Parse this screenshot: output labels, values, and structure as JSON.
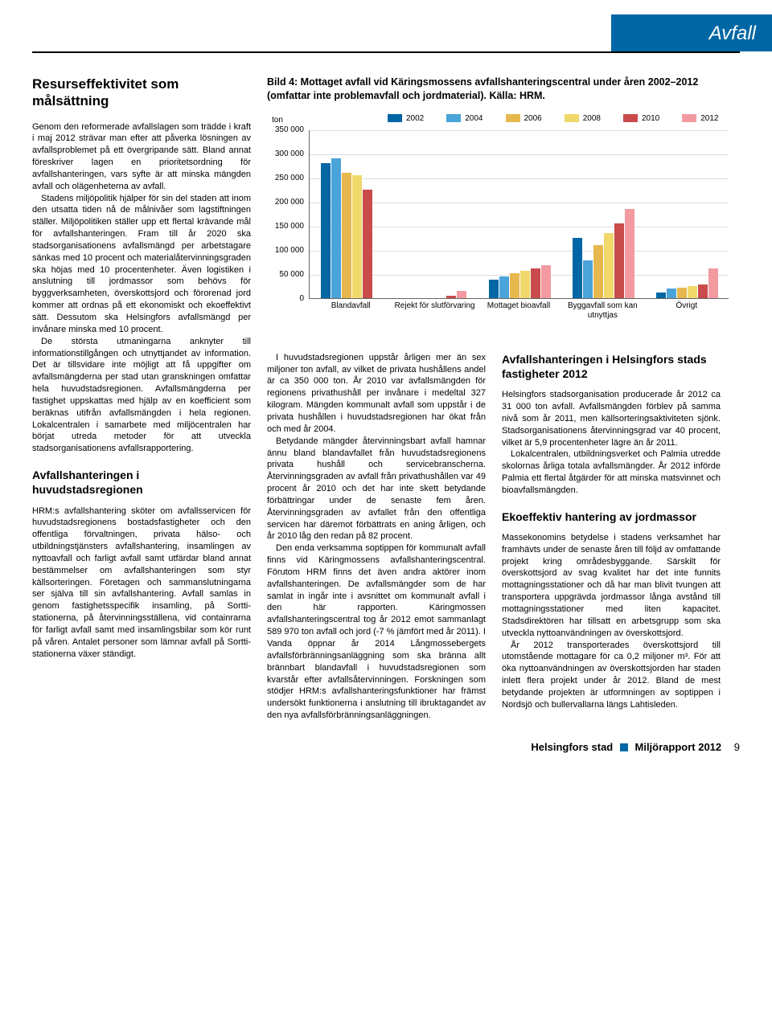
{
  "header": {
    "title": "Avfall"
  },
  "left": {
    "title": "Resurseffektivitet som målsättning",
    "p1": "Genom den reformerade avfallslagen som trädde i kraft i maj 2012 strävar man efter att påverka lösningen av avfallsproblemet på ett övergripande sätt. Bland annat föreskriver lagen en prioritetsordning för avfallshanteringen, vars syfte är att minska mängden avfall och olägenheterna av avfall.",
    "p2": "Stadens miljöpolitik hjälper för sin del staden att inom den utsatta tiden nå de målnivåer som lagstiftningen ställer. Miljöpolitiken ställer upp ett flertal krävande mål för avfallshanteringen. Fram till år 2020 ska stadsorganisationens avfallsmängd per arbetstagare sänkas med 10 procent och materialåtervinningsgraden ska höjas med 10 procentenheter. Även logistiken i anslutning till jordmassor som behövs för byggverksamheten, överskottsjord och förorenad jord kommer att ordnas på ett ekonomiskt och ekoeffektivt sätt. Dessutom ska Helsingfors avfallsmängd per invånare minska med 10 procent.",
    "p3": "De största utmaningarna anknyter till informationstillgången och utnyttjandet av information. Det är tillsvidare inte möjligt att få uppgifter om avfallsmängderna per stad utan granskningen omfattar hela huvudstadsregionen. Avfallsmängderna per fastighet uppskattas med hjälp av en koefficient som beräknas utifrån avfallsmängden i hela regionen. Lokalcentralen i samarbete med miljöcentralen har börjat utreda metoder för att utveckla stadsorganisationens avfallsrapportering.",
    "sub": "Avfallshanteringen i huvudstadsregionen",
    "p4": "HRM:s avfallshantering sköter om avfallsservicen för huvudstadsregionens bostadsfastigheter och den offentliga förvaltningen, privata hälso- och utbildningstjänsters avfallshantering, insamlingen av nyttoavfall och farligt avfall samt utfärdar bland annat bestämmelser om avfallshanteringen som styr källsorteringen. Företagen och sammanslutningarna ser själva till sin avfallshantering. Avfall samlas in genom fastighetsspecifik insamling, på Sortti-stationerna, på återvinningsställena, vid containrarna för farligt avfall samt med insamlingsbilar som kör runt på våren. Antalet personer som lämnar avfall på Sortti-stationerna växer ständigt."
  },
  "chart": {
    "caption": "Bild 4: Mottaget avfall vid Käringsmossens avfallshanteringscentral under åren 2002–2012 (omfattar inte problemavfall och jordmaterial). Källa: HRM.",
    "y_unit": "ton",
    "y_ticks": [
      "350 000",
      "300 000",
      "250 000",
      "200 000",
      "150 000",
      "100 000",
      "50 000",
      "0"
    ],
    "ymax": 350000,
    "categories": [
      "Blandavfall",
      "Rejekt för slutförvaring",
      "Mottaget bioavfall",
      "Byggavfall som kan utnyttjas",
      "Övrigt"
    ],
    "legend": [
      "2002",
      "2004",
      "2006",
      "2008",
      "2010",
      "2012"
    ],
    "colors": [
      "#0066a4",
      "#4aa3d9",
      "#e6b84d",
      "#f0d86b",
      "#c94b4b",
      "#f39aa0"
    ],
    "series": {
      "Blandavfall": [
        280000,
        290000,
        260000,
        255000,
        225000,
        0
      ],
      "Rejekt för slutförvaring": [
        0,
        0,
        0,
        0,
        5000,
        15000
      ],
      "Mottaget bioavfall": [
        38000,
        45000,
        52000,
        57000,
        62000,
        68000
      ],
      "Byggavfall som kan utnyttjas": [
        125000,
        78000,
        110000,
        135000,
        155000,
        185000
      ],
      "Övrigt": [
        12000,
        20000,
        22000,
        25000,
        28000,
        62000
      ]
    }
  },
  "mid": {
    "p1": "I huvudstadsregionen uppstår årligen mer än sex miljoner ton avfall, av vilket de privata hushållens andel är ca 350 000 ton. År 2010 var avfallsmängden för regionens privathushåll per invånare i medeltal 327 kilogram. Mängden kommunalt avfall som uppstår i de privata hushållen i huvudstadsregionen har ökat från och med år 2004.",
    "p2": "Betydande mängder återvinningsbart avfall hamnar ännu bland blandavfallet från huvudstadsregionens privata hushåll och servicebranscherna. Återvinningsgraden av avfall från privathushållen var 49 procent år 2010 och det har inte skett betydande förbättringar under de senaste fem åren. Återvinningsgraden av avfallet från den offentliga servicen har däremot förbättrats en aning årligen, och år 2010 låg den redan på 82 procent.",
    "p3": "Den enda verksamma soptippen för kommunalt avfall finns vid Käringmossens avfallshanteringscentral. Förutom HRM finns det även andra aktörer inom avfallshanteringen. De avfallsmängder som de har samlat in ingår inte i avsnittet om kommunalt avfall i den här rapporten. Käringmossen avfallshanteringscentral tog år 2012 emot sammanlagt 589 970 ton avfall och jord (-7 % jämfört med år 2011). I Vanda öppnar år 2014 Långmossebergets avfallsförbränningsanläggning som ska bränna allt brännbart blandavfall i huvudstadsregionen som kvarstår efter avfallsåtervinningen. Forskningen som stödjer HRM:s avfallshanteringsfunktioner har främst undersökt funktionerna i anslutning till ibruktagandet av den nya avfallsförbränningsanläggningen."
  },
  "right": {
    "sub1": "Avfallshanteringen i Helsingfors stads fastigheter 2012",
    "p1": "Helsingfors stadsorganisation producerade år 2012 ca 31 000 ton avfall. Avfallsmängden förblev på samma nivå som år 2011, men källsorteringsaktiviteten sjönk. Stadsorganisationens återvinningsgrad var 40 procent, vilket är 5,9 procentenheter lägre än år 2011.",
    "p2": "Lokalcentralen, utbildningsverket och Palmia utredde skolornas årliga totala avfallsmängder. År 2012 införde Palmia ett flertal åtgärder för att minska matsvinnet och bioavfallsmängden.",
    "sub2": "Ekoeffektiv hantering av jordmassor",
    "p3": "Massekonomins betydelse i stadens verksamhet har framhävts under de senaste åren till följd av omfattande projekt kring områdesbyggande. Särskilt för överskottsjord av svag kvalitet har det inte funnits mottagningsstationer och då har man blivit tvungen att transportera uppgrävda jordmassor långa avstånd till mottagningsstationer med liten kapacitet. Stadsdirektören har tillsatt en arbetsgrupp som ska utveckla nyttoanvändningen av överskottsjord.",
    "p4": "År 2012 transporterades överskottsjord till utomstående mottagare för ca 0,2 miljoner m³. För att öka nyttoanvändningen av överskottsjorden har staden inlett flera projekt under år 2012. Bland de mest betydande projekten är utformningen av soptippen i Nordsjö och bullervallarna längs Lahtisleden."
  },
  "footer": {
    "left": "Helsingfors stad",
    "right": "Miljörapport 2012",
    "page": "9"
  }
}
